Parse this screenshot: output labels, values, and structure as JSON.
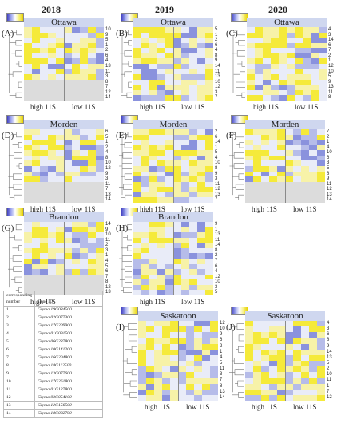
{
  "years": [
    "2018",
    "2019",
    "2020"
  ],
  "axis": {
    "high": "high 11S",
    "low": "low 11S"
  },
  "colors": {
    "low": "#8a92dd",
    "mid": "#e9ecf8",
    "high": "#f5ea3a",
    "missing": "#dcdcdc"
  },
  "panels": [
    {
      "letter": "(A)",
      "location": "Ottawa",
      "rows": [
        "10",
        "9",
        "5",
        "1",
        "2",
        "6",
        "4",
        "13",
        "11",
        "3",
        "8",
        "7",
        "12",
        "14"
      ]
    },
    {
      "letter": "(B)",
      "location": "Ottawa",
      "rows": [
        "5",
        "1",
        "2",
        "6",
        "4",
        "8",
        "9",
        "14",
        "11",
        "13",
        "10",
        "12",
        "3",
        "7"
      ]
    },
    {
      "letter": "(C)",
      "location": "Ottawa",
      "rows": [
        "4",
        "3",
        "14",
        "6",
        "7",
        "2",
        "1",
        "12",
        "10",
        "5",
        "9",
        "13",
        "11",
        "8"
      ]
    },
    {
      "letter": "(D)",
      "location": "Morden",
      "rows": [
        "6",
        "5",
        "1",
        "2",
        "4",
        "8",
        "10",
        "12",
        "9",
        "3",
        "11",
        "7",
        "13",
        "14"
      ]
    },
    {
      "letter": "(E)",
      "location": "Morden",
      "rows": [
        "2",
        "6",
        "14",
        "1",
        "5",
        "4",
        "10",
        "8",
        "9",
        "3",
        "11",
        "12",
        "13",
        "7"
      ]
    },
    {
      "letter": "(F)",
      "location": "Morden",
      "rows": [
        "7",
        "2",
        "1",
        "4",
        "10",
        "6",
        "3",
        "5",
        "8",
        "9",
        "11",
        "12",
        "13",
        "14"
      ]
    },
    {
      "letter": "(G)",
      "location": "Brandon",
      "rows": [
        "14",
        "9",
        "10",
        "11",
        "2",
        "3",
        "1",
        "4",
        "5",
        "6",
        "7",
        "8",
        "12",
        "13"
      ]
    },
    {
      "letter": "(H)",
      "location": "Brandon",
      "rows": [
        "9",
        "1",
        "13",
        "11",
        "14",
        "8",
        "2",
        "7",
        "6",
        "4",
        "12",
        "10",
        "3",
        "5"
      ]
    },
    {
      "letter": "(I)",
      "location": "Saskatoon",
      "rows": [
        "12",
        "10",
        "9",
        "6",
        "2",
        "1",
        "4",
        "5",
        "11",
        "3",
        "7",
        "8",
        "13",
        "14"
      ]
    },
    {
      "letter": "(J)",
      "location": "Saskatoon",
      "rows": [
        "4",
        "3",
        "6",
        "8",
        "9",
        "14",
        "13",
        "5",
        "2",
        "10",
        "11",
        "1",
        "7",
        "12"
      ]
    }
  ],
  "gene_table": {
    "header_num": "corresponding\nnumber",
    "header_id": "Gene ID",
    "rows": [
      [
        "1",
        "Glyma.19G084500"
      ],
      [
        "2",
        "Glyma.02G077300"
      ],
      [
        "3",
        "Glyma.17G209900"
      ],
      [
        "4",
        "Glyma.01G091500"
      ],
      [
        "5",
        "Glyma.06G287800"
      ],
      [
        "6",
        "Glyma.10G141200"
      ],
      [
        "7",
        "Glyma.16G204800"
      ],
      [
        "8",
        "Glyma.18G112500"
      ],
      [
        "9",
        "Glyma.13G077600"
      ],
      [
        "10",
        "Glyma.17G261800"
      ],
      [
        "11",
        "Glyma.01G127800"
      ],
      [
        "12",
        "Glyma.03G054100"
      ],
      [
        "13",
        "Glyma.12G156500"
      ],
      [
        "14",
        "Glyma.18G082700"
      ]
    ]
  }
}
